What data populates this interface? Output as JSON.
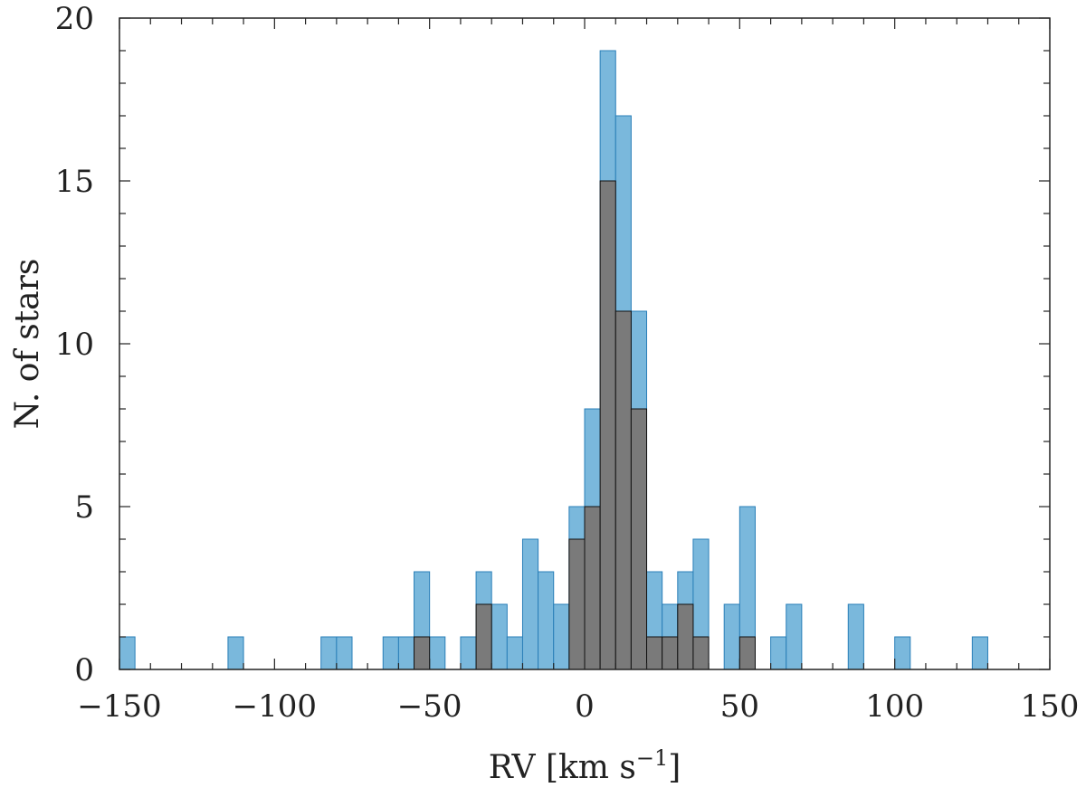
{
  "chart_data": {
    "type": "bar",
    "title": "",
    "xlabel": "RV [km s",
    "xlabel_superscript": "−1",
    "xlabel_suffix": "]",
    "ylabel": "N. of stars",
    "xlim": [
      -150,
      150
    ],
    "ylim": [
      0,
      20
    ],
    "grid": false,
    "legend": "none",
    "bin_width": 5,
    "x_ticks": [
      -150,
      -100,
      -50,
      0,
      50,
      100,
      150
    ],
    "x_tick_labels": [
      "−150",
      "−100",
      "−50",
      "0",
      "50",
      "100",
      "150"
    ],
    "y_ticks": [
      0,
      5,
      10,
      15,
      20
    ],
    "y_tick_labels": [
      "0",
      "5",
      "10",
      "15",
      "20"
    ],
    "series": [
      {
        "color": "#7ab8dc",
        "edge_color": "#2a7fb8",
        "bins": [
          {
            "x": -147.5,
            "value": 1
          },
          {
            "x": -112.5,
            "value": 1
          },
          {
            "x": -82.5,
            "value": 1
          },
          {
            "x": -77.5,
            "value": 1
          },
          {
            "x": -62.5,
            "value": 1
          },
          {
            "x": -57.5,
            "value": 1
          },
          {
            "x": -52.5,
            "value": 3
          },
          {
            "x": -47.5,
            "value": 1
          },
          {
            "x": -37.5,
            "value": 1
          },
          {
            "x": -32.5,
            "value": 3
          },
          {
            "x": -27.5,
            "value": 2
          },
          {
            "x": -22.5,
            "value": 1
          },
          {
            "x": -17.5,
            "value": 4
          },
          {
            "x": -12.5,
            "value": 3
          },
          {
            "x": -7.5,
            "value": 2
          },
          {
            "x": -2.5,
            "value": 5
          },
          {
            "x": 2.5,
            "value": 8
          },
          {
            "x": 7.5,
            "value": 19
          },
          {
            "x": 12.5,
            "value": 17
          },
          {
            "x": 17.5,
            "value": 11
          },
          {
            "x": 22.5,
            "value": 3
          },
          {
            "x": 27.5,
            "value": 2
          },
          {
            "x": 32.5,
            "value": 3
          },
          {
            "x": 37.5,
            "value": 4
          },
          {
            "x": 47.5,
            "value": 2
          },
          {
            "x": 52.5,
            "value": 5
          },
          {
            "x": 62.5,
            "value": 1
          },
          {
            "x": 67.5,
            "value": 2
          },
          {
            "x": 87.5,
            "value": 2
          },
          {
            "x": 102.5,
            "value": 1
          },
          {
            "x": 127.5,
            "value": 1
          }
        ]
      },
      {
        "color": "#7a7a7a",
        "edge_color": "#111111",
        "bins": [
          {
            "x": -52.5,
            "value": 1
          },
          {
            "x": -32.5,
            "value": 2
          },
          {
            "x": -2.5,
            "value": 4
          },
          {
            "x": 2.5,
            "value": 5
          },
          {
            "x": 7.5,
            "value": 15
          },
          {
            "x": 12.5,
            "value": 11
          },
          {
            "x": 17.5,
            "value": 8
          },
          {
            "x": 22.5,
            "value": 1
          },
          {
            "x": 27.5,
            "value": 1
          },
          {
            "x": 32.5,
            "value": 2
          },
          {
            "x": 37.5,
            "value": 1
          },
          {
            "x": 52.5,
            "value": 1
          }
        ]
      }
    ]
  }
}
